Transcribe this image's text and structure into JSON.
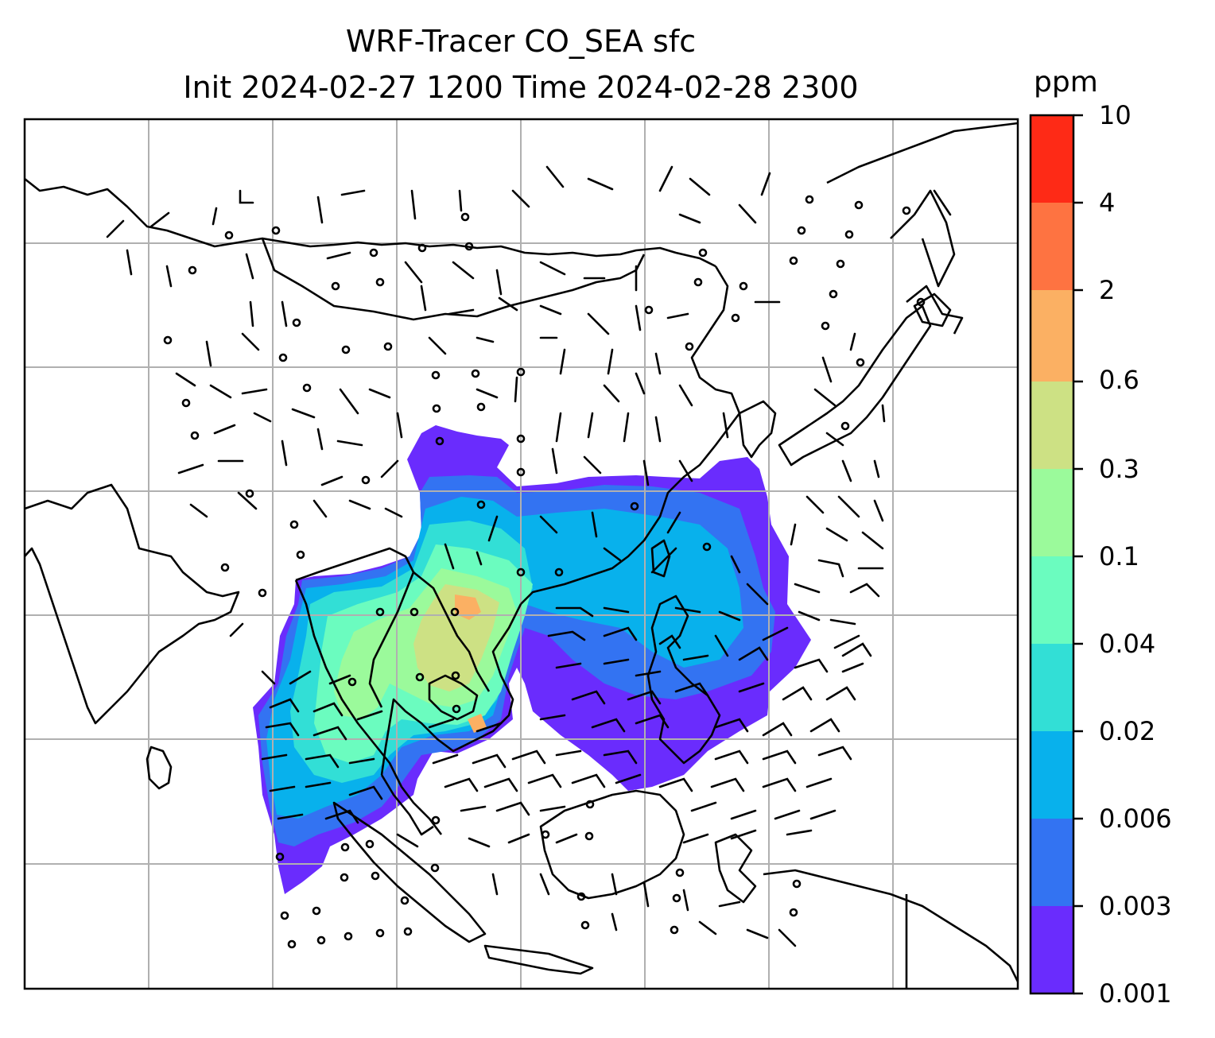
{
  "title": {
    "line1": "WRF-Tracer CO_SEA sfc",
    "line2": "Init 2024-02-27 1200 Time 2024-02-28 2300"
  },
  "colorbar": {
    "unit": "ppm",
    "levels": [
      "0.001",
      "0.003",
      "0.006",
      "0.02",
      "0.04",
      "0.1",
      "0.3",
      "0.6",
      "2",
      "4",
      "10"
    ],
    "colors": [
      "#6a2cfd",
      "#3373f2",
      "#08b1ec",
      "#32dfd6",
      "#6bfcbf",
      "#9bfa9b",
      "#cde184",
      "#fbb063",
      "#fe7341",
      "#fe2a16"
    ]
  },
  "map": {
    "grid": "on",
    "coastlines": "on",
    "wind_barbs": "on",
    "tracer_field": "CO_SEA"
  }
}
